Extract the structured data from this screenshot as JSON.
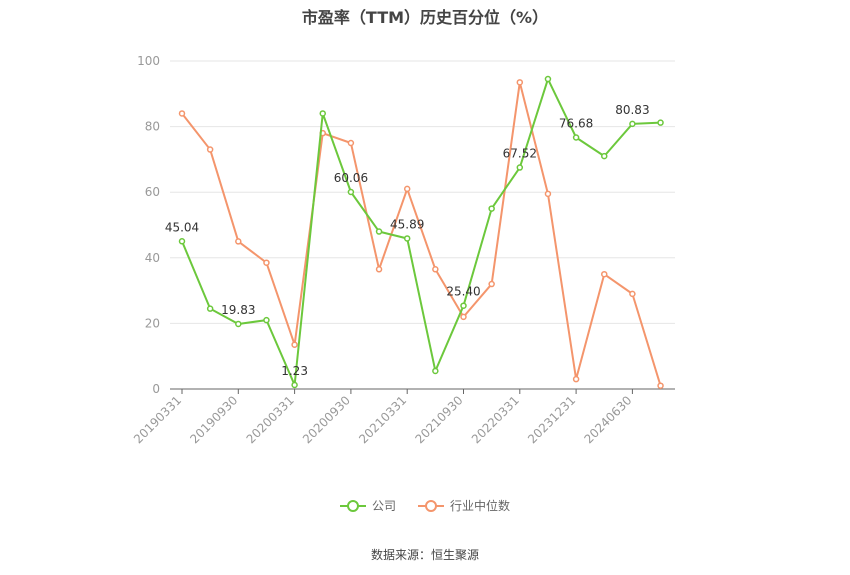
{
  "title": "市盈率（TTM）历史百分位（%）",
  "source_text": "数据来源：恒生聚源",
  "colors": {
    "company": "#6cc83c",
    "industry": "#f4956c",
    "grid": "#e6e6e6",
    "axis": "#999999"
  },
  "chart_data": {
    "type": "line",
    "title": "市盈率（TTM）历史百分位（%）",
    "ylim": [
      0,
      100
    ],
    "yticks": [
      0,
      20,
      40,
      60,
      80,
      100
    ],
    "grid": true,
    "legend_position": "bottom",
    "xtick_labels": [
      "20190331",
      "20190930",
      "20200331",
      "20200930",
      "20210331",
      "20210930",
      "20220331",
      "20231231",
      "20240630"
    ],
    "series": [
      {
        "name": "公司",
        "values": [
          45.04,
          24.5,
          19.83,
          21,
          1.23,
          84,
          60.06,
          48,
          45.89,
          5.5,
          25.4,
          55,
          67.52,
          94.5,
          76.68,
          71,
          80.83,
          81.2
        ],
        "labels": [
          "45.04",
          "",
          "19.83",
          "",
          "1.23",
          "",
          "60.06",
          "",
          "45.89",
          "",
          "25.40",
          "",
          "67.52",
          "",
          "76.68",
          "",
          "80.83",
          ""
        ]
      },
      {
        "name": "行业中位数",
        "values": [
          84,
          73,
          45,
          38.5,
          13.5,
          78,
          75,
          36.5,
          61,
          36.5,
          22,
          32,
          93.5,
          59.5,
          3,
          35,
          29,
          1
        ]
      }
    ]
  }
}
